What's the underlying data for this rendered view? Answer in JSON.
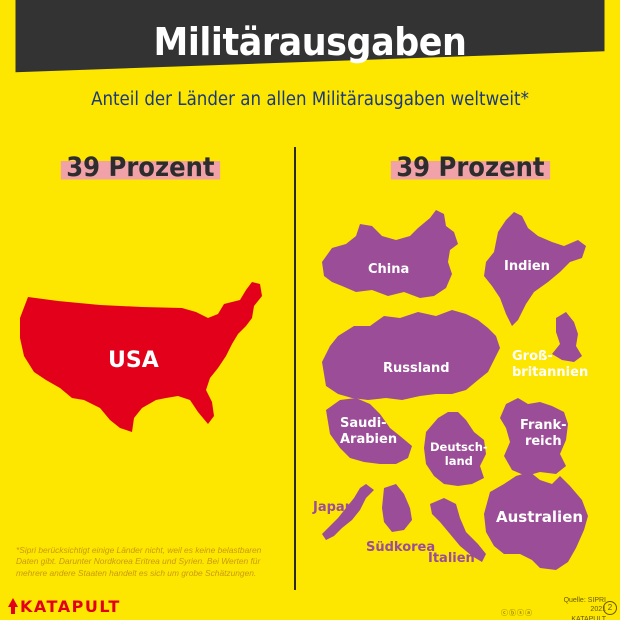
{
  "header": {
    "title": "Militärausgaben",
    "subtitle": "Anteil der Länder an allen Militärausgaben weltweit*"
  },
  "left_panel": {
    "percent_label": "39 Prozent",
    "country": "USA"
  },
  "right_panel": {
    "percent_label": "39 Prozent",
    "countries": {
      "china": "China",
      "indien": "Indien",
      "russland": "Russland",
      "grossbritannien_1": "Groß-",
      "grossbritannien_2": "britannien",
      "saudi_1": "Saudi-",
      "saudi_2": "Arabien",
      "frankreich_1": "Frank-",
      "frankreich_2": "reich",
      "deutschland_1": "Deutsch-",
      "deutschland_2": "land",
      "japan": "Japan",
      "australien": "Australien",
      "suedkorea": "Südkorea",
      "italien": "Italien"
    }
  },
  "footnote": "*Sipri berücksichtigt einige Länder nicht, weil es keine belastbaren Daten gibt. Darunter Nordkorea Eritrea und Syrien. Bei Werten für mehrere andere Staaten handelt es sich um grobe Schätzungen.",
  "footer": {
    "logo_text": "KATAPULT",
    "source_line1": "Quelle: SIPRI",
    "source_line2": "2021 KATAPULT",
    "page_number": "2",
    "license_icons": "ⓒⓑⓢⓐ"
  },
  "colors": {
    "background": "#fde600",
    "header_band": "#333333",
    "usa_fill": "#e2001a",
    "countries_fill": "#9b4d97",
    "percent_highlight": "#f0a2a8",
    "subtitle_text": "#1b3a78"
  }
}
